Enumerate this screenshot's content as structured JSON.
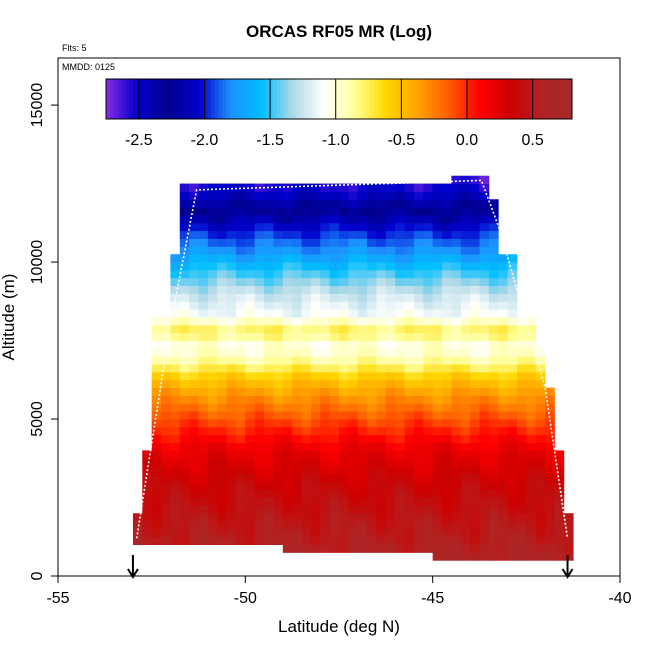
{
  "chart_data": {
    "type": "heatmap",
    "title": "ORCAS RF05 MR (Log)",
    "annotations": {
      "flights": "Flts: 5",
      "mmdd": "MMDD: 0125"
    },
    "xlabel": "Latitude (deg N)",
    "ylabel": "Altitude (m)",
    "xlim": [
      -55,
      -40
    ],
    "ylim": [
      0,
      16500
    ],
    "x_ticks": [
      -55,
      -50,
      -45,
      -40
    ],
    "x_tick_labels": [
      "-55",
      "-50",
      "-45",
      "-40"
    ],
    "y_ticks": [
      0,
      5000,
      10000,
      15000
    ],
    "y_tick_labels": [
      "0",
      "5000",
      "10000",
      "15000"
    ],
    "colorbar": {
      "min": -2.75,
      "max": 0.8,
      "ticks": [
        -2.5,
        -2.0,
        -1.5,
        -1.0,
        -0.5,
        0.0,
        0.5
      ],
      "tick_labels": [
        "-2.5",
        "-2.0",
        "-1.5",
        "-1.0",
        "-0.5",
        "0.0",
        "0.5"
      ],
      "colors": [
        "#8A2BE2",
        "#0000CD",
        "#00008B",
        "#0000CD",
        "#1E90FF",
        "#00BFFF",
        "#ADD8E6",
        "#FFFFFF",
        "#FFFF99",
        "#FFD700",
        "#FFA500",
        "#FF6000",
        "#FF0000",
        "#CD0000",
        "#B22222",
        "#A52A2A"
      ]
    },
    "extent_bands": [
      {
        "alt_min": 12000,
        "alt_max": 12500,
        "lat_min": -51.8,
        "lat_max": -43.5
      },
      {
        "alt_min": 10250,
        "alt_max": 12000,
        "lat_min": -51.8,
        "lat_max": -43.2
      },
      {
        "alt_min": 8250,
        "alt_max": 10250,
        "lat_min": -52.1,
        "lat_max": -42.8
      },
      {
        "alt_min": 7200,
        "alt_max": 8250,
        "lat_min": -52.4,
        "lat_max": -42.2
      },
      {
        "alt_min": 6000,
        "alt_max": 7200,
        "lat_min": -52.4,
        "lat_max": -42.0
      },
      {
        "alt_min": 4000,
        "alt_max": 6000,
        "lat_min": -52.6,
        "lat_max": -41.8
      },
      {
        "alt_min": 2000,
        "alt_max": 4000,
        "lat_min": -52.8,
        "lat_max": -41.5
      },
      {
        "alt_min": 1000,
        "alt_max": 2000,
        "lat_min": -53.0,
        "lat_max": -41.3
      },
      {
        "alt_min": 700,
        "alt_max": 1000,
        "lat_min": -49.0,
        "lat_max": -41.3
      },
      {
        "alt_min": 500,
        "alt_max": 700,
        "lat_min": -45.0,
        "lat_max": -41.3
      },
      {
        "alt_min": 12500,
        "alt_max": 12750,
        "lat_min": -44.5,
        "lat_max": -43.5
      }
    ],
    "profile": [
      {
        "alt": 0,
        "value": 0.7
      },
      {
        "alt": 1000,
        "value": 0.55
      },
      {
        "alt": 2000,
        "value": 0.45
      },
      {
        "alt": 3000,
        "value": 0.35
      },
      {
        "alt": 4000,
        "value": 0.2
      },
      {
        "alt": 5000,
        "value": -0.1
      },
      {
        "alt": 5800,
        "value": -0.35
      },
      {
        "alt": 6300,
        "value": -0.55
      },
      {
        "alt": 6800,
        "value": -0.85
      },
      {
        "alt": 7300,
        "value": -1.05
      },
      {
        "alt": 7800,
        "value": -0.75
      },
      {
        "alt": 8300,
        "value": -1.1
      },
      {
        "alt": 9000,
        "value": -1.25
      },
      {
        "alt": 9700,
        "value": -1.5
      },
      {
        "alt": 10300,
        "value": -1.75
      },
      {
        "alt": 11000,
        "value": -2.0
      },
      {
        "alt": 11600,
        "value": -2.25
      },
      {
        "alt": 12100,
        "value": -2.45
      },
      {
        "alt": 12600,
        "value": -2.6
      }
    ],
    "flight_track": [
      {
        "lat": -52.9,
        "alt": 1200
      },
      {
        "lat": -52.0,
        "alt": 8000
      },
      {
        "lat": -51.3,
        "alt": 12300
      },
      {
        "lat": -43.7,
        "alt": 12600
      },
      {
        "lat": -43.2,
        "alt": 11000
      },
      {
        "lat": -42.0,
        "alt": 6000
      },
      {
        "lat": -41.4,
        "alt": 1200
      }
    ],
    "markers": [
      {
        "lat": -53.0,
        "type": "down-arrow"
      },
      {
        "lat": -41.4,
        "type": "down-arrow"
      }
    ]
  }
}
